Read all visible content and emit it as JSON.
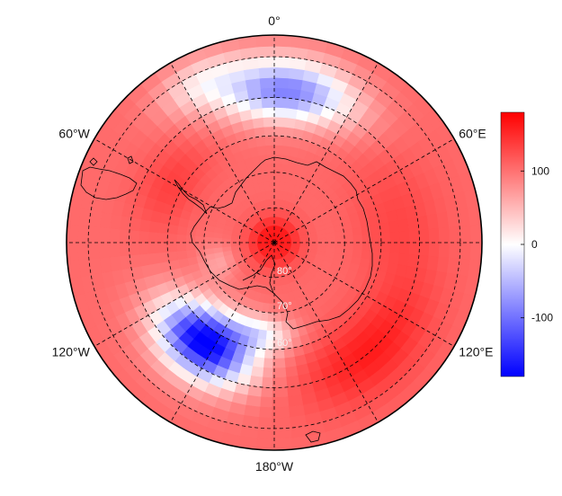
{
  "map": {
    "projection": "south-polar-stereographic",
    "longitude_labels": [
      {
        "lon": 0,
        "text": "0°"
      },
      {
        "lon": 60,
        "text": "60°E"
      },
      {
        "lon": 120,
        "text": "120°E"
      },
      {
        "lon": 180,
        "text": "180°W"
      },
      {
        "lon": -120,
        "text": "120°W"
      },
      {
        "lon": -60,
        "text": "60°W"
      }
    ],
    "latitude_labels": [
      {
        "lat": -80,
        "text": "80°"
      },
      {
        "lat": -70,
        "text": "70°"
      },
      {
        "lat": -60,
        "text": "60°"
      }
    ],
    "latitude_circles": [
      -80,
      -70,
      -60,
      -50,
      -40
    ],
    "meridians": [
      0,
      30,
      60,
      90,
      120,
      150,
      180,
      -150,
      -120,
      -90,
      -60,
      -30
    ],
    "boundary_lat": -35,
    "colors": {
      "negative": "#0000ff",
      "zero": "#ffffff",
      "positive": "#ff0000",
      "coast": "#000000",
      "grid": "#000000"
    }
  },
  "colorbar": {
    "min": -180,
    "max": 180,
    "ticks": [
      {
        "value": 100,
        "text": "100"
      },
      {
        "value": 0,
        "text": "0"
      },
      {
        "value": -100,
        "text": "-100"
      }
    ]
  }
}
